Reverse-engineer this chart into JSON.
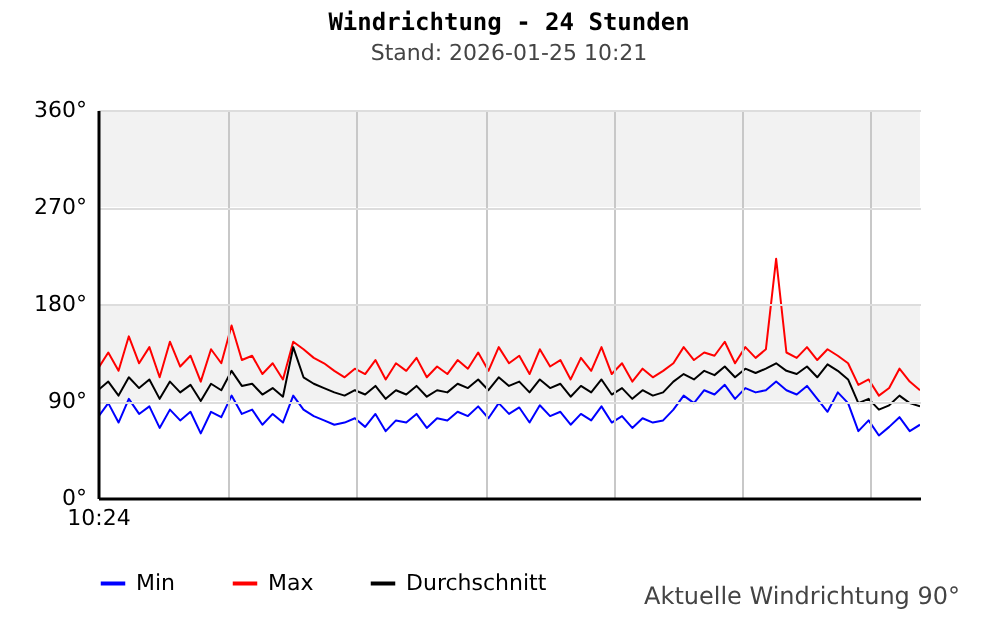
{
  "chart_data": {
    "type": "line",
    "title": "Windrichtung - 24 Stunden",
    "subtitle": "Stand: 2026-01-25 10:21",
    "categories": [
      "10:24",
      null,
      null,
      null,
      null,
      null,
      null,
      null,
      null,
      null,
      null,
      null,
      null,
      null,
      null,
      null,
      null,
      null,
      null,
      null,
      null,
      null,
      null,
      null,
      null,
      null,
      null,
      null,
      null,
      null,
      null,
      null,
      null,
      null,
      null,
      null,
      null,
      null,
      null,
      null,
      null,
      null,
      null,
      null,
      null,
      null,
      null,
      null,
      null,
      null,
      null,
      null,
      null,
      null,
      null,
      null,
      null,
      null,
      null,
      null,
      null,
      null,
      null,
      null,
      null,
      null,
      null,
      null,
      null,
      null,
      null,
      null,
      null,
      null,
      null,
      null,
      null,
      null,
      null,
      null,
      null
    ],
    "series": [
      {
        "name": "Min",
        "color": "#0000ff",
        "values": [
          75,
          88,
          70,
          92,
          78,
          85,
          65,
          82,
          72,
          80,
          60,
          80,
          75,
          95,
          78,
          82,
          68,
          78,
          70,
          95,
          82,
          76,
          72,
          68,
          70,
          74,
          66,
          78,
          62,
          72,
          70,
          78,
          65,
          74,
          72,
          80,
          76,
          85,
          74,
          88,
          78,
          84,
          70,
          86,
          76,
          80,
          68,
          78,
          72,
          85,
          70,
          76,
          65,
          74,
          70,
          72,
          82,
          95,
          88,
          100,
          96,
          105,
          92,
          102,
          98,
          100,
          108,
          100,
          96,
          104,
          92,
          80,
          98,
          88,
          62,
          72,
          58,
          66,
          75,
          62,
          68
        ]
      },
      {
        "name": "Max",
        "color": "#ff0000",
        "values": [
          120,
          135,
          118,
          150,
          125,
          140,
          112,
          145,
          122,
          132,
          108,
          138,
          125,
          160,
          128,
          132,
          115,
          125,
          110,
          145,
          138,
          130,
          125,
          118,
          112,
          120,
          115,
          128,
          110,
          125,
          118,
          130,
          112,
          122,
          115,
          128,
          120,
          135,
          118,
          140,
          125,
          132,
          115,
          138,
          122,
          128,
          110,
          130,
          118,
          140,
          115,
          125,
          108,
          120,
          112,
          118,
          125,
          140,
          128,
          135,
          132,
          145,
          125,
          140,
          130,
          138,
          222,
          135,
          130,
          140,
          128,
          138,
          132,
          125,
          105,
          110,
          95,
          102,
          120,
          108,
          100
        ]
      },
      {
        "name": "Durchschnitt",
        "color": "#000000",
        "values": [
          100,
          108,
          95,
          112,
          102,
          110,
          92,
          108,
          98,
          105,
          90,
          106,
          100,
          118,
          104,
          106,
          96,
          102,
          94,
          140,
          112,
          106,
          102,
          98,
          95,
          100,
          96,
          104,
          92,
          100,
          96,
          104,
          94,
          100,
          98,
          106,
          102,
          110,
          100,
          112,
          104,
          108,
          98,
          110,
          102,
          106,
          94,
          104,
          98,
          110,
          96,
          102,
          92,
          100,
          95,
          98,
          108,
          115,
          110,
          118,
          114,
          122,
          112,
          120,
          116,
          120,
          125,
          118,
          115,
          122,
          112,
          124,
          118,
          110,
          88,
          92,
          82,
          86,
          95,
          88,
          85
        ]
      }
    ],
    "ylim": [
      0,
      360
    ],
    "yticks": [
      {
        "value": 0,
        "label": "0°"
      },
      {
        "value": 90,
        "label": "90°"
      },
      {
        "value": 180,
        "label": "180°"
      },
      {
        "value": 270,
        "label": "270°"
      },
      {
        "value": 360,
        "label": "360°"
      }
    ],
    "bands": [
      {
        "axis": "y",
        "from": 90,
        "to": 180,
        "color": "#f2f2f2"
      },
      {
        "axis": "y",
        "from": 270,
        "to": 360,
        "color": "#f2f2f2"
      }
    ],
    "grid": true,
    "legend": "bottom",
    "annotations": [
      "Aktuelle Windrichtung 90°"
    ]
  }
}
